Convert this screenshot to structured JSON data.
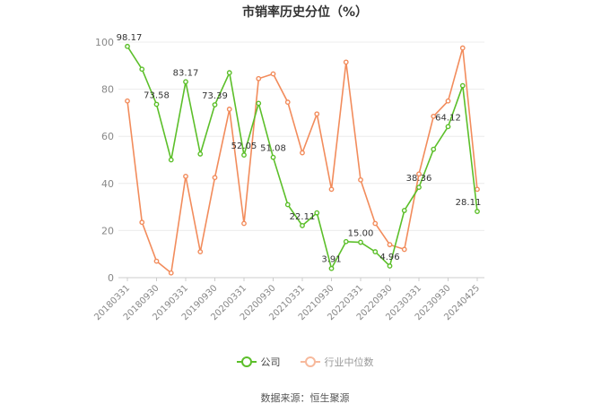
{
  "chart_data": {
    "type": "line",
    "title": "市销率历史分位（%）",
    "xlabel": "",
    "ylabel": "",
    "ylim": [
      0,
      100
    ],
    "yticks": [
      0,
      20,
      40,
      60,
      80,
      100
    ],
    "grid": true,
    "legend_position": "bottom",
    "x_tick_labels": [
      "20180331",
      "20180930",
      "20190331",
      "20190930",
      "20200331",
      "20200930",
      "20210331",
      "20210930",
      "20220331",
      "20220930",
      "20230331",
      "20230930",
      "20240425"
    ],
    "x": [
      "20180331",
      "20180630",
      "20180930",
      "20181231",
      "20190331",
      "20190630",
      "20190930",
      "20191231",
      "20200331",
      "20200630",
      "20200930",
      "20201231",
      "20210331",
      "20210630",
      "20210930",
      "20211231",
      "20220331",
      "20220630",
      "20220930",
      "20221231",
      "20230331",
      "20230630",
      "20230930",
      "20231231",
      "20240425"
    ],
    "series": [
      {
        "name": "公司",
        "color": "#5cbf2a",
        "values": [
          98.17,
          88.5,
          73.58,
          50.0,
          83.17,
          52.5,
          73.39,
          87.0,
          52.05,
          74.0,
          51.08,
          31.0,
          22.11,
          27.5,
          3.91,
          15.3,
          15.0,
          11.0,
          4.96,
          28.5,
          38.36,
          54.5,
          64.12,
          81.5,
          28.11
        ],
        "labels": {
          "0": "98.17",
          "2": "73.58",
          "4": "83.17",
          "6": "73.39",
          "8": "52.05",
          "10": "51.08",
          "12": "22.11",
          "14": "3.91",
          "16": "15.00",
          "18": "4.96",
          "20": "38.36",
          "22": "64.12",
          "24": "28.11"
        }
      },
      {
        "name": "行业中位数",
        "color": "#f28c5c",
        "values": [
          75.0,
          23.5,
          7.0,
          2.0,
          43.0,
          11.0,
          42.5,
          71.5,
          23.0,
          84.5,
          86.5,
          74.5,
          53.0,
          69.5,
          37.5,
          91.5,
          41.5,
          23.0,
          14.0,
          12.0,
          44.0,
          68.5,
          75.0,
          97.5,
          37.5
        ],
        "labels": {}
      }
    ]
  },
  "source_text": "数据来源：恒生聚源"
}
